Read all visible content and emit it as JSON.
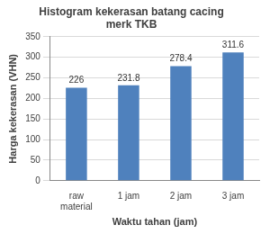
{
  "chart_data": {
    "type": "bar",
    "title": "Histogram kekerasan batang cacing merk TKB",
    "x_label": "Waktu tahan (jam)",
    "y_label": "Harga kekerasan (VHN)",
    "categories": [
      "raw material",
      "1 jam",
      "2 jam",
      "3 jam"
    ],
    "values": [
      226,
      231.8,
      278.4,
      311.6
    ],
    "color": "#4f81bd",
    "ylim": [
      0,
      350
    ],
    "yticks": [
      0,
      50,
      100,
      150,
      200,
      250,
      300,
      350
    ],
    "grid": true,
    "data_labels": true
  }
}
